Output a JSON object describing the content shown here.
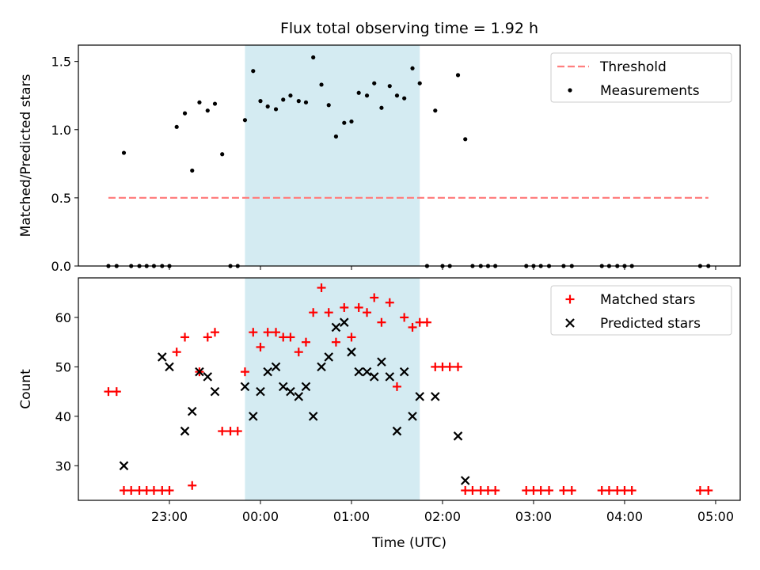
{
  "chart_data": [
    {
      "type": "scatter",
      "title": "Flux total observing time = 1.92 h",
      "xlabel": "",
      "ylabel": "Matched/Predicted stars",
      "x_unit": "hours relative to 00:00 UTC",
      "xlim": [
        -2.0,
        5.27
      ],
      "ylim": [
        0,
        1.62
      ],
      "yticks": [
        0.0,
        0.5,
        1.0,
        1.5
      ],
      "ytick_labels": [
        "0.0",
        "0.5",
        "1.0",
        "1.5"
      ],
      "shaded_interval": [
        -0.17,
        1.75
      ],
      "series": [
        {
          "name": "Threshold",
          "style": "dashed-line",
          "color": "#ff7f7f",
          "x": [
            -1.67,
            4.92
          ],
          "y": [
            0.5,
            0.5
          ]
        },
        {
          "name": "Measurements",
          "style": "dot",
          "color": "#000000",
          "x": [
            -1.67,
            -1.58,
            -1.5,
            -1.42,
            -1.33,
            -1.25,
            -1.17,
            -1.08,
            -1.0,
            -0.92,
            -0.83,
            -0.75,
            -0.67,
            -0.58,
            -0.5,
            -0.42,
            -0.33,
            -0.25,
            -0.17,
            -0.08,
            0.0,
            0.08,
            0.17,
            0.25,
            0.33,
            0.42,
            0.5,
            0.58,
            0.67,
            0.75,
            0.83,
            0.92,
            1.0,
            1.08,
            1.17,
            1.25,
            1.33,
            1.42,
            1.5,
            1.58,
            1.67,
            1.75,
            1.83,
            1.92,
            2.0,
            2.08,
            2.17,
            2.25,
            2.33,
            2.42,
            2.5,
            2.58,
            2.92,
            3.0,
            3.08,
            3.17,
            3.33,
            3.42,
            3.75,
            3.83,
            3.92,
            4.0,
            4.08,
            4.83,
            4.92
          ],
          "y": [
            0,
            0,
            0.83,
            0,
            0,
            0,
            0,
            0,
            0,
            1.02,
            1.12,
            0.7,
            1.2,
            1.14,
            1.19,
            0.82,
            0,
            0,
            1.07,
            1.43,
            1.21,
            1.17,
            1.15,
            1.22,
            1.25,
            1.21,
            1.2,
            1.53,
            1.33,
            1.18,
            0.95,
            1.05,
            1.06,
            1.27,
            1.25,
            1.34,
            1.16,
            1.32,
            1.25,
            1.23,
            1.45,
            1.34,
            0,
            1.14,
            0,
            0,
            1.4,
            0.93,
            0,
            0,
            0,
            0,
            0,
            0,
            0,
            0,
            0,
            0,
            0,
            0,
            0,
            0,
            0,
            0,
            0
          ]
        }
      ],
      "legend": [
        "Threshold",
        "Measurements"
      ],
      "legend_position": "top-right"
    },
    {
      "type": "scatter",
      "title": "",
      "xlabel": "Time (UTC)",
      "ylabel": "Count",
      "x_unit": "hours relative to 00:00 UTC",
      "xlim": [
        -2.0,
        5.27
      ],
      "ylim": [
        23,
        68
      ],
      "yticks": [
        30,
        40,
        50,
        60
      ],
      "xticks": [
        -1,
        0,
        1,
        2,
        3,
        4,
        5
      ],
      "xtick_labels": [
        "23:00",
        "00:00",
        "01:00",
        "02:00",
        "03:00",
        "04:00",
        "05:00"
      ],
      "shaded_interval": [
        -0.17,
        1.75
      ],
      "series": [
        {
          "name": "Matched stars",
          "style": "plus",
          "color": "#ff0000",
          "x": [
            -1.67,
            -1.58,
            -1.5,
            -1.42,
            -1.33,
            -1.25,
            -1.17,
            -1.08,
            -1.0,
            -0.92,
            -0.83,
            -0.75,
            -0.67,
            -0.58,
            -0.5,
            -0.42,
            -0.33,
            -0.25,
            -0.17,
            -0.08,
            0.0,
            0.08,
            0.17,
            0.25,
            0.33,
            0.42,
            0.5,
            0.58,
            0.67,
            0.75,
            0.83,
            0.92,
            1.0,
            1.08,
            1.17,
            1.25,
            1.33,
            1.42,
            1.5,
            1.58,
            1.67,
            1.75,
            1.83,
            1.92,
            2.0,
            2.08,
            2.17,
            2.25,
            2.33,
            2.42,
            2.5,
            2.58,
            2.92,
            3.0,
            3.08,
            3.17,
            3.33,
            3.42,
            3.75,
            3.83,
            3.92,
            4.0,
            4.08,
            4.83,
            4.92
          ],
          "y": [
            45,
            45,
            25,
            25,
            25,
            25,
            25,
            25,
            25,
            53,
            56,
            26,
            49,
            56,
            57,
            37,
            37,
            37,
            49,
            57,
            54,
            57,
            57,
            56,
            56,
            53,
            55,
            61,
            66,
            61,
            55,
            62,
            56,
            62,
            61,
            64,
            59,
            63,
            46,
            60,
            58,
            59,
            59,
            50,
            50,
            50,
            50,
            25,
            25,
            25,
            25,
            25,
            25,
            25,
            25,
            25,
            25,
            25,
            25,
            25,
            25,
            25,
            25,
            25,
            25
          ]
        },
        {
          "name": "Predicted stars",
          "style": "x",
          "color": "#000000",
          "x": [
            -1.5,
            -1.08,
            -1.0,
            -0.83,
            -0.75,
            -0.67,
            -0.58,
            -0.5,
            -0.17,
            -0.08,
            0.0,
            0.08,
            0.17,
            0.25,
            0.33,
            0.42,
            0.5,
            0.58,
            0.67,
            0.75,
            0.83,
            0.92,
            1.0,
            1.08,
            1.17,
            1.25,
            1.33,
            1.42,
            1.5,
            1.58,
            1.67,
            1.75,
            1.92,
            2.17,
            2.25
          ],
          "y": [
            30,
            52,
            50,
            37,
            41,
            49,
            48,
            45,
            46,
            40,
            45,
            49,
            50,
            46,
            45,
            44,
            46,
            40,
            50,
            52,
            58,
            59,
            53,
            49,
            49,
            48,
            51,
            48,
            37,
            49,
            40,
            44,
            44,
            36,
            27
          ]
        }
      ],
      "legend": [
        "Matched stars",
        "Predicted stars"
      ],
      "legend_position": "top-right"
    }
  ]
}
